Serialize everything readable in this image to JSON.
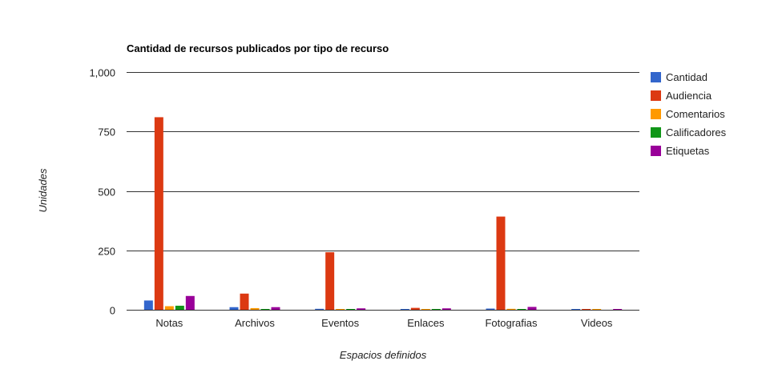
{
  "chart_data": {
    "type": "bar",
    "title": "Cantidad de recursos publicados por tipo de recurso",
    "xlabel": "Espacios definidos",
    "ylabel": "Unidades",
    "ylim": [
      0,
      1000
    ],
    "yticks": [
      0,
      250,
      500,
      750,
      1000
    ],
    "ytick_labels": [
      "0",
      "250",
      "500",
      "750",
      "1,000"
    ],
    "grid": true,
    "legend_position": "right",
    "categories": [
      "Notas",
      "Archivos",
      "Eventos",
      "Enlaces",
      "Fotografias",
      "Videos"
    ],
    "series": [
      {
        "name": "Cantidad",
        "color": "#3366cc",
        "values": [
          39,
          11,
          4,
          3,
          5,
          1
        ]
      },
      {
        "name": "Audiencia",
        "color": "#dc3912",
        "values": [
          810,
          68,
          242,
          8,
          392,
          2
        ]
      },
      {
        "name": "Comentarios",
        "color": "#ff9900",
        "values": [
          15,
          7,
          2,
          1,
          4,
          1
        ]
      },
      {
        "name": "Calificadores",
        "color": "#109618",
        "values": [
          17,
          2,
          1,
          1,
          3,
          0
        ]
      },
      {
        "name": "Etiquetas",
        "color": "#990099",
        "values": [
          58,
          11,
          6,
          6,
          12,
          3
        ]
      }
    ]
  }
}
